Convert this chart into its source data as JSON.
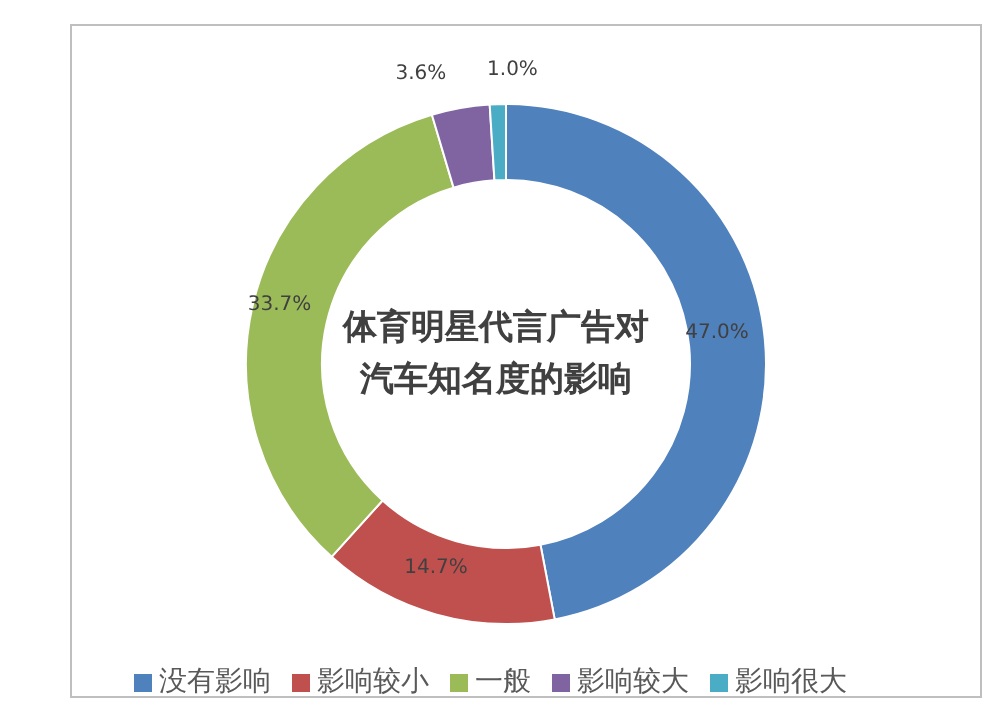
{
  "chart_data": {
    "type": "donut",
    "title": "体育明星代言广告对汽车知名度的影响",
    "categories": [
      "没有影响",
      "影响较小",
      "一般",
      "影响较大",
      "影响很大"
    ],
    "values": [
      47.0,
      14.7,
      33.7,
      3.6,
      1.0
    ],
    "value_labels": [
      "47.0%",
      "14.7%",
      "33.7%",
      "3.6%",
      "1.0%"
    ],
    "colors": [
      "#4f81bd",
      "#c0504d",
      "#9bbb59",
      "#8064a2",
      "#4bacc6"
    ],
    "legend": "bottom"
  }
}
